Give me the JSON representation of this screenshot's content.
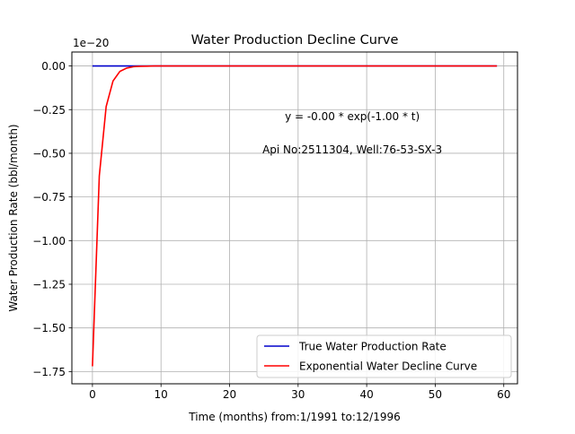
{
  "chart_data": {
    "type": "line",
    "title": "Water Production Decline Curve",
    "xlabel": "Time (months) from:1/1991 to:12/1996",
    "ylabel": "Water Production Rate (bbl/month)",
    "offset_text": "1e−20",
    "y_scale_factor": 1e-20,
    "xlim": [
      -3,
      62
    ],
    "ylim": [
      -1.82,
      0.08
    ],
    "grid": true,
    "legend_position": "lower-right",
    "x_ticks": [
      0,
      10,
      20,
      30,
      40,
      50,
      60
    ],
    "x_tick_labels": [
      "0",
      "10",
      "20",
      "30",
      "40",
      "50",
      "60"
    ],
    "y_ticks": [
      0,
      -0.25,
      -0.5,
      -0.75,
      -1.0,
      -1.25,
      -1.5,
      -1.75
    ],
    "y_tick_labels": [
      "0.00",
      "−0.25",
      "−0.50",
      "−0.75",
      "−1.00",
      "−1.25",
      "−1.50",
      "−1.75"
    ],
    "annotations": [
      {
        "text": "y = -0.00 * exp(-1.00 * t)",
        "x": 40,
        "y": -0.29
      },
      {
        "text": "Api No:2511304, Well:76-53-SX-3",
        "x": 40,
        "y": -0.48
      }
    ],
    "series": [
      {
        "name": "True Water Production Rate",
        "color": "#0000cc",
        "x": [
          0,
          59
        ],
        "y": [
          0,
          0
        ]
      },
      {
        "name": "Exponential Water Decline Curve",
        "color": "#ff0000",
        "x": [
          0,
          1,
          2,
          3,
          4,
          5,
          6,
          7,
          8,
          9,
          10,
          15,
          20,
          30,
          40,
          50,
          59
        ],
        "y": [
          -1.72,
          -0.63,
          -0.233,
          -0.086,
          -0.031,
          -0.012,
          -0.004,
          -0.002,
          -0.001,
          0,
          0,
          0,
          0,
          0,
          0,
          0,
          0
        ]
      }
    ]
  }
}
